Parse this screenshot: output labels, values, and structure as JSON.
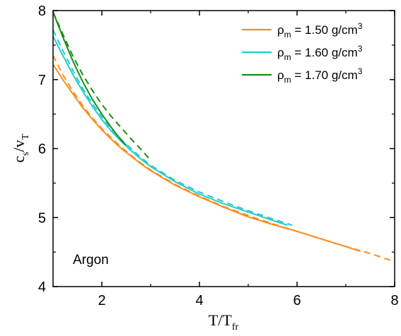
{
  "chart_data": {
    "type": "line",
    "xlabel": {
      "main": "T/T",
      "sub": "fr"
    },
    "ylabel": {
      "main": "c",
      "sub1": "s",
      "mid": "/v",
      "sub2": "T"
    },
    "xlim": [
      1,
      8
    ],
    "ylim": [
      4,
      8
    ],
    "xticks": [
      2,
      4,
      6,
      8
    ],
    "yticks": [
      4,
      5,
      6,
      7,
      8
    ],
    "xtick_labels": [
      "2",
      "4",
      "6",
      "8"
    ],
    "ytick_labels": [
      "4",
      "5",
      "6",
      "7",
      "8"
    ],
    "annotation": "Argon",
    "legend_position": "top-right",
    "series": [
      {
        "legend": {
          "sym": "ρ",
          "sub": "m",
          "text": " = 1.50 g/cm",
          "sup": "3"
        },
        "color": "#ff8c1a",
        "solid": [
          [
            1.0,
            7.22
          ],
          [
            1.2,
            7.0
          ],
          [
            1.4,
            6.8
          ],
          [
            1.6,
            6.6
          ],
          [
            1.8,
            6.43
          ],
          [
            2.0,
            6.27
          ],
          [
            2.2,
            6.13
          ],
          [
            2.4,
            6.0
          ],
          [
            2.6,
            5.89
          ],
          [
            2.8,
            5.78
          ],
          [
            3.0,
            5.68
          ],
          [
            3.5,
            5.47
          ],
          [
            4.0,
            5.3
          ],
          [
            4.5,
            5.15
          ],
          [
            5.0,
            5.01
          ],
          [
            5.5,
            4.9
          ],
          [
            6.0,
            4.8
          ],
          [
            6.5,
            4.69
          ],
          [
            7.0,
            4.58
          ],
          [
            7.3,
            4.51
          ]
        ],
        "dashed": [
          [
            1.0,
            7.35
          ],
          [
            1.2,
            7.07
          ],
          [
            1.4,
            6.84
          ],
          [
            1.6,
            6.63
          ],
          [
            1.8,
            6.45
          ],
          [
            2.0,
            6.29
          ],
          [
            2.2,
            6.15
          ],
          [
            2.4,
            6.02
          ],
          [
            2.6,
            5.9
          ],
          [
            2.8,
            5.79
          ],
          [
            3.0,
            5.69
          ],
          [
            3.5,
            5.48
          ],
          [
            4.0,
            5.31
          ],
          [
            4.5,
            5.16
          ],
          [
            5.0,
            5.03
          ],
          [
            5.5,
            4.91
          ],
          [
            6.0,
            4.8
          ],
          [
            6.5,
            4.69
          ],
          [
            7.0,
            4.58
          ],
          [
            7.5,
            4.48
          ],
          [
            8.0,
            4.36
          ]
        ]
      },
      {
        "legend": {
          "sym": "ρ",
          "sub": "m",
          "text": " = 1.60 g/cm",
          "sup": "3"
        },
        "color": "#22cccc",
        "solid": [
          [
            1.0,
            7.63
          ],
          [
            1.2,
            7.35
          ],
          [
            1.4,
            7.08
          ],
          [
            1.6,
            6.84
          ],
          [
            1.8,
            6.62
          ],
          [
            2.0,
            6.42
          ],
          [
            2.2,
            6.25
          ],
          [
            2.4,
            6.1
          ],
          [
            2.6,
            5.97
          ],
          [
            2.8,
            5.85
          ],
          [
            3.0,
            5.74
          ],
          [
            3.5,
            5.52
          ],
          [
            4.0,
            5.34
          ],
          [
            4.5,
            5.2
          ],
          [
            5.0,
            5.08
          ],
          [
            5.5,
            4.96
          ],
          [
            5.8,
            4.89
          ]
        ],
        "dashed": [
          [
            1.0,
            7.72
          ],
          [
            1.2,
            7.42
          ],
          [
            1.4,
            7.14
          ],
          [
            1.6,
            6.88
          ],
          [
            1.8,
            6.66
          ],
          [
            2.0,
            6.46
          ],
          [
            2.2,
            6.28
          ],
          [
            2.4,
            6.13
          ],
          [
            2.6,
            6.0
          ],
          [
            2.8,
            5.87
          ],
          [
            3.0,
            5.76
          ],
          [
            3.5,
            5.54
          ],
          [
            4.0,
            5.37
          ],
          [
            4.5,
            5.23
          ],
          [
            5.0,
            5.1
          ],
          [
            5.5,
            4.98
          ],
          [
            5.9,
            4.89
          ]
        ]
      },
      {
        "legend": {
          "sym": "ρ",
          "sub": "m",
          "text": " = 1.70 g/cm",
          "sup": "3"
        },
        "color": "#1a8c1a",
        "solid": [
          [
            1.0,
            7.98
          ],
          [
            1.2,
            7.62
          ],
          [
            1.4,
            7.28
          ],
          [
            1.6,
            6.98
          ],
          [
            1.8,
            6.72
          ],
          [
            2.0,
            6.5
          ],
          [
            2.2,
            6.3
          ],
          [
            2.4,
            6.12
          ],
          [
            2.5,
            6.05
          ]
        ],
        "dashed": [
          [
            1.0,
            7.98
          ],
          [
            1.2,
            7.66
          ],
          [
            1.4,
            7.35
          ],
          [
            1.6,
            7.08
          ],
          [
            1.8,
            6.85
          ],
          [
            2.0,
            6.64
          ],
          [
            2.2,
            6.46
          ],
          [
            2.4,
            6.3
          ],
          [
            2.6,
            6.14
          ],
          [
            2.8,
            5.99
          ],
          [
            3.0,
            5.83
          ]
        ]
      }
    ]
  }
}
